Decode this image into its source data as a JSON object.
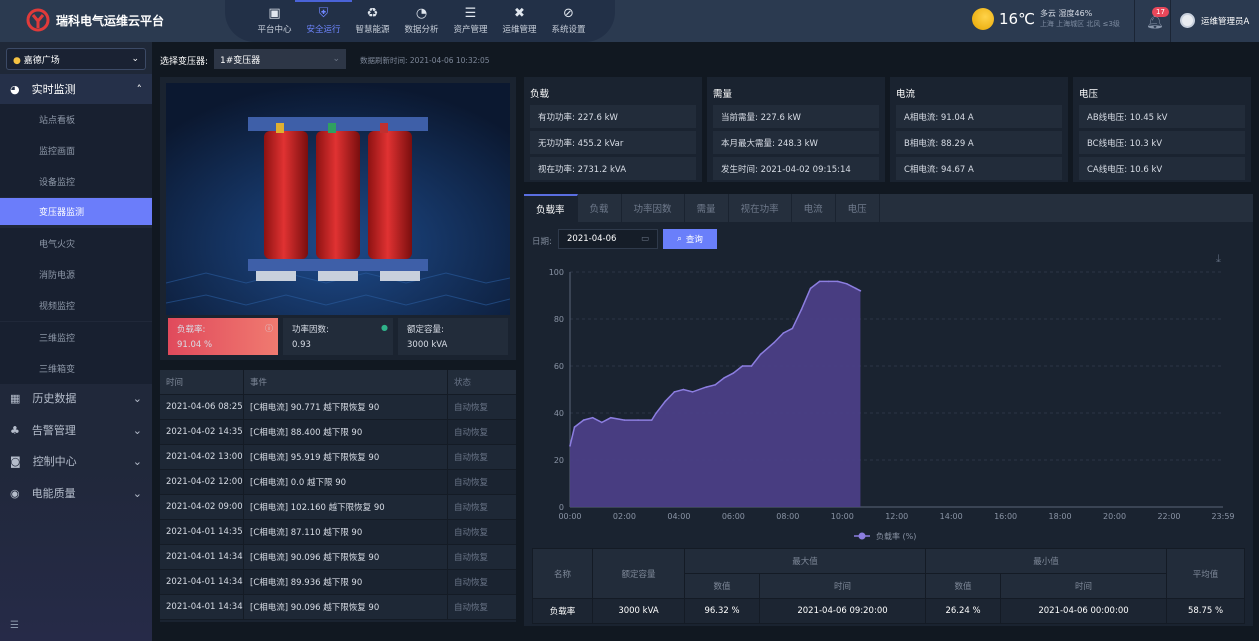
{
  "header": {
    "title": "瑞科电气运维云平台",
    "logo_text": "瑞科电气",
    "nav": [
      {
        "label": "平台中心",
        "icon": "monitor-icon"
      },
      {
        "label": "安全运行",
        "icon": "shield-icon",
        "active": true
      },
      {
        "label": "智慧能源",
        "icon": "recycle-icon"
      },
      {
        "label": "数据分析",
        "icon": "pie-chart-icon"
      },
      {
        "label": "资产管理",
        "icon": "database-icon"
      },
      {
        "label": "运维管理",
        "icon": "tools-icon"
      },
      {
        "label": "系统设置",
        "icon": "settings-icon"
      }
    ],
    "weather": {
      "temp": "16℃",
      "desc": "多云 湿度46%",
      "location": "上海 上海城区 北风 ≤3级"
    },
    "notifications": "17",
    "user": "运维管理员A"
  },
  "sidebar": {
    "site": "嘉德广场",
    "groups": [
      {
        "label": "实时监测",
        "open": true,
        "items": [
          "站点看板",
          "监控画面",
          "设备监控",
          "变压器监测",
          "电气火灾",
          "消防电源",
          "视频监控",
          "三维监控",
          "三维箱变"
        ],
        "active": "变压器监测"
      },
      {
        "label": "历史数据"
      },
      {
        "label": "告警管理"
      },
      {
        "label": "控制中心"
      },
      {
        "label": "电能质量"
      }
    ]
  },
  "toolbar": {
    "select_label": "选择变压器:",
    "transformer": "1#变压器",
    "refresh": "数据刷新时间: 2021-04-06 10:32:05"
  },
  "kpis": [
    {
      "label": "负载率:",
      "value": "91.04 %"
    },
    {
      "label": "功率因数:",
      "value": "0.93"
    },
    {
      "label": "额定容量:",
      "value": "3000 kVA"
    }
  ],
  "events": {
    "headers": [
      "时间",
      "事件",
      "状态"
    ],
    "rows": [
      [
        "2021-04-06 08:25",
        "[C相电流] 90.771 越下限恢复 90",
        "自动恢复"
      ],
      [
        "2021-04-02 14:35",
        "[C相电流] 88.400 越下限 90",
        "自动恢复"
      ],
      [
        "2021-04-02 13:00",
        "[C相电流] 95.919 越下限恢复 90",
        "自动恢复"
      ],
      [
        "2021-04-02 12:00",
        "[C相电流] 0.0 越下限 90",
        "自动恢复"
      ],
      [
        "2021-04-02 09:00",
        "[C相电流] 102.160 越下限恢复 90",
        "自动恢复"
      ],
      [
        "2021-04-01 14:35",
        "[C相电流] 87.110 越下限 90",
        "自动恢复"
      ],
      [
        "2021-04-01 14:34",
        "[C相电流] 90.096 越下限恢复 90",
        "自动恢复"
      ],
      [
        "2021-04-01 14:34",
        "[C相电流] 89.936 越下限 90",
        "自动恢复"
      ],
      [
        "2021-04-01 14:34",
        "[C相电流] 90.096 越下限恢复 90",
        "自动恢复"
      ]
    ]
  },
  "metrics": [
    {
      "title": "负载",
      "rows": [
        "有功功率: 227.6 kW",
        "无功功率: 455.2 kVar",
        "视在功率: 2731.2 kVA"
      ]
    },
    {
      "title": "需量",
      "rows": [
        "当前需量: 227.6 kW",
        "本月最大需量: 248.3 kW",
        "发生时间: 2021-04-02 09:15:14"
      ]
    },
    {
      "title": "电流",
      "rows": [
        "A相电流: 91.04 A",
        "B相电流: 88.29 A",
        "C相电流: 94.67 A"
      ]
    },
    {
      "title": "电压",
      "rows": [
        "AB线电压: 10.45 kV",
        "BC线电压: 10.3 kV",
        "CA线电压: 10.6 kV"
      ]
    }
  ],
  "tabs": [
    "负载率",
    "负载",
    "功率因数",
    "需量",
    "视在功率",
    "电流",
    "电压"
  ],
  "query": {
    "date_label": "日期:",
    "date": "2021-04-06",
    "button": "查询"
  },
  "chart_data": {
    "type": "area",
    "ylim": [
      0,
      100
    ],
    "yticks": [
      0,
      20,
      40,
      60,
      80,
      100
    ],
    "xticks": [
      "00:00",
      "02:00",
      "04:00",
      "06:00",
      "08:00",
      "10:00",
      "12:00",
      "14:00",
      "16:00",
      "18:00",
      "20:00",
      "22:00",
      "23:59"
    ],
    "legend": "负载率 (%)",
    "legend_position": "bottom",
    "grid": "horizontal dashed",
    "color": "#8c7ee0",
    "x": [
      "00:00",
      "00:10",
      "00:30",
      "00:50",
      "01:10",
      "01:30",
      "02:00",
      "02:30",
      "03:00",
      "03:10",
      "03:30",
      "03:50",
      "04:10",
      "04:30",
      "05:00",
      "05:20",
      "05:40",
      "06:00",
      "06:20",
      "06:40",
      "07:00",
      "07:30",
      "07:50",
      "08:10",
      "08:30",
      "08:50",
      "09:10",
      "09:30",
      "09:50",
      "10:10",
      "10:30",
      "10:40"
    ],
    "y": [
      26,
      34,
      37,
      38,
      36,
      38,
      37,
      37,
      37,
      40,
      45,
      49,
      50,
      49,
      51,
      52,
      55,
      57,
      60,
      60,
      65,
      70,
      74,
      76,
      84,
      93,
      96,
      96,
      96,
      95,
      93,
      92
    ],
    "stats": {
      "headers": [
        "名称",
        "额定容量",
        "最大值",
        "最小值",
        "平均值"
      ],
      "sub_headers": [
        "数值",
        "时间",
        "数值",
        "时间"
      ],
      "row": [
        "负载率",
        "3000 kVA",
        "96.32 %",
        "2021-04-06 09:20:00",
        "26.24 %",
        "2021-04-06 00:00:00",
        "58.75 %"
      ]
    }
  }
}
